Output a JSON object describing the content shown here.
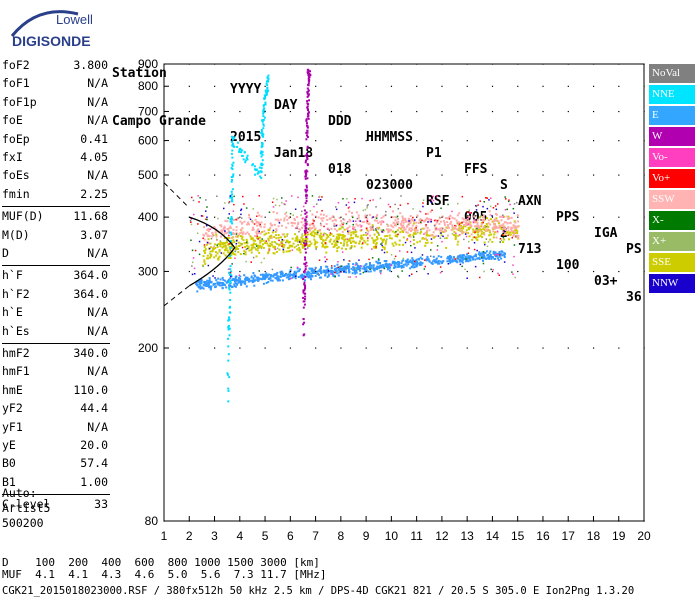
{
  "logo": {
    "line1": "Lowell",
    "line2": "DIGISONDE"
  },
  "header": {
    "labels": [
      "Station",
      "YYYY",
      "DAY",
      "DDD",
      "HHMMSS",
      "P1",
      "FFS",
      "S",
      "AXN",
      "PPS",
      "IGA",
      "PS"
    ],
    "values": [
      "Campo Grande",
      "2015",
      "Jan18",
      "018",
      "023000",
      "RSF",
      "005",
      "2",
      "713",
      "100",
      "03+",
      "36"
    ]
  },
  "params": {
    "group1": [
      {
        "k": "foF2",
        "v": "3.800"
      },
      {
        "k": "foF1",
        "v": "N/A"
      },
      {
        "k": "foF1p",
        "v": "N/A"
      },
      {
        "k": "foE",
        "v": "N/A"
      },
      {
        "k": "foEp",
        "v": "0.41"
      },
      {
        "k": "fxI",
        "v": "4.05"
      },
      {
        "k": "foEs",
        "v": "N/A"
      },
      {
        "k": "fmin",
        "v": "2.25"
      }
    ],
    "group2": [
      {
        "k": "MUF(D)",
        "v": "11.68"
      },
      {
        "k": "M(D)",
        "v": "3.07"
      },
      {
        "k": "D",
        "v": "N/A"
      }
    ],
    "group3": [
      {
        "k": "h`F",
        "v": "364.0"
      },
      {
        "k": "h`F2",
        "v": "364.0"
      },
      {
        "k": "h`E",
        "v": "N/A"
      },
      {
        "k": "h`Es",
        "v": "N/A"
      }
    ],
    "group4": [
      {
        "k": "hmF2",
        "v": "340.0"
      },
      {
        "k": "hmF1",
        "v": "N/A"
      },
      {
        "k": "hmE",
        "v": "110.0"
      },
      {
        "k": "yF2",
        "v": "44.4"
      },
      {
        "k": "yF1",
        "v": "N/A"
      },
      {
        "k": "yE",
        "v": "20.0"
      },
      {
        "k": "B0",
        "v": "57.4"
      },
      {
        "k": "B1",
        "v": "1.00"
      }
    ],
    "group5": [
      {
        "k": "C-level",
        "v": "33"
      }
    ]
  },
  "auto": {
    "line1": "Auto:",
    "line2": "Artist5",
    "line3": "500200"
  },
  "chart_data": {
    "type": "scatter",
    "title": "",
    "xlabel": "",
    "ylabel": "",
    "xlim": [
      1,
      20
    ],
    "ylim": [
      80,
      900
    ],
    "y_scale": "log",
    "x_ticks": [
      "1",
      "2",
      "3",
      "4",
      "5",
      "6",
      "7",
      "8",
      "9",
      "10",
      "11",
      "12",
      "13",
      "14",
      "15",
      "16",
      "17",
      "18",
      "19",
      "20"
    ],
    "y_ticks": [
      "80",
      "200",
      "300",
      "400",
      "500",
      "600",
      "700",
      "800",
      "900"
    ],
    "series": [
      {
        "name": "E",
        "color": "#3399ff",
        "points": [
          [
            2.2,
            280
          ],
          [
            3,
            283
          ],
          [
            4,
            287
          ],
          [
            5,
            292
          ],
          [
            6,
            296
          ],
          [
            7,
            300
          ],
          [
            8,
            304
          ],
          [
            9,
            307
          ],
          [
            10,
            312
          ],
          [
            11,
            315
          ],
          [
            12.5,
            322
          ],
          [
            13.5,
            326
          ],
          [
            14.5,
            330
          ]
        ]
      },
      {
        "name": "SSE",
        "color": "#cccc00",
        "points": [
          [
            2.5,
            330
          ],
          [
            3.5,
            345
          ],
          [
            4.5,
            350
          ],
          [
            5.5,
            352
          ],
          [
            6.5,
            355
          ],
          [
            7.5,
            357
          ],
          [
            8.5,
            358
          ],
          [
            10,
            360
          ],
          [
            12.5,
            372
          ],
          [
            13.5,
            375
          ],
          [
            15,
            378
          ]
        ]
      },
      {
        "name": "SSW",
        "color": "#ffaaaa",
        "points": [
          [
            2.5,
            360
          ],
          [
            4,
            385
          ],
          [
            6,
            392
          ],
          [
            8,
            392
          ],
          [
            10,
            388
          ],
          [
            11,
            385
          ],
          [
            12.5,
            385
          ],
          [
            14,
            388
          ],
          [
            15,
            380
          ]
        ]
      },
      {
        "name": "W",
        "color": "#aa00aa",
        "points": [
          [
            6.5,
            230
          ],
          [
            6.55,
            360
          ],
          [
            6.6,
            500
          ],
          [
            6.65,
            700
          ],
          [
            6.7,
            880
          ]
        ]
      },
      {
        "name": "NNE",
        "color": "#00ddff",
        "points": [
          [
            3.5,
            160
          ],
          [
            3.6,
            330
          ],
          [
            3.7,
            600
          ],
          [
            4.8,
            500
          ],
          [
            4.9,
            700
          ],
          [
            5.1,
            850
          ]
        ]
      }
    ]
  },
  "legend": [
    {
      "label": "NoVal",
      "bg": "#808080",
      "fg": "#ffffff"
    },
    {
      "label": "NNE",
      "bg": "#00e5ff",
      "fg": "#ffffff"
    },
    {
      "label": "E",
      "bg": "#33a6ff",
      "fg": "#ffffff"
    },
    {
      "label": "W",
      "bg": "#b000b0",
      "fg": "#ffffff"
    },
    {
      "label": "Vo-",
      "bg": "#ff3fbf",
      "fg": "#ffffff"
    },
    {
      "label": "Vo+",
      "bg": "#ff0000",
      "fg": "#ffffff"
    },
    {
      "label": "SSW",
      "bg": "#ffb3b3",
      "fg": "#ffffff"
    },
    {
      "label": "X-",
      "bg": "#007a00",
      "fg": "#ffffff"
    },
    {
      "label": "X+",
      "bg": "#99bb66",
      "fg": "#ffffff"
    },
    {
      "label": "SSE",
      "bg": "#cccc00",
      "fg": "#ffffff"
    },
    {
      "label": "NNW",
      "bg": "#1a00cc",
      "fg": "#ffffff"
    }
  ],
  "bottom": {
    "d_label": "D",
    "d_values": "100  200  400  600  800 1000 1500 3000 [km]",
    "muf_label": "MUF",
    "muf_values": "4.1  4.1  4.3  4.6  5.0  5.6  7.3 11.7 [MHz]",
    "footer": "CGK21_2015018023000.RSF / 380fx512h 50 kHz 2.5 km / DPS-4D CGK21 821 / 20.5 S 305.0 E Ion2Png 1.3.20"
  }
}
